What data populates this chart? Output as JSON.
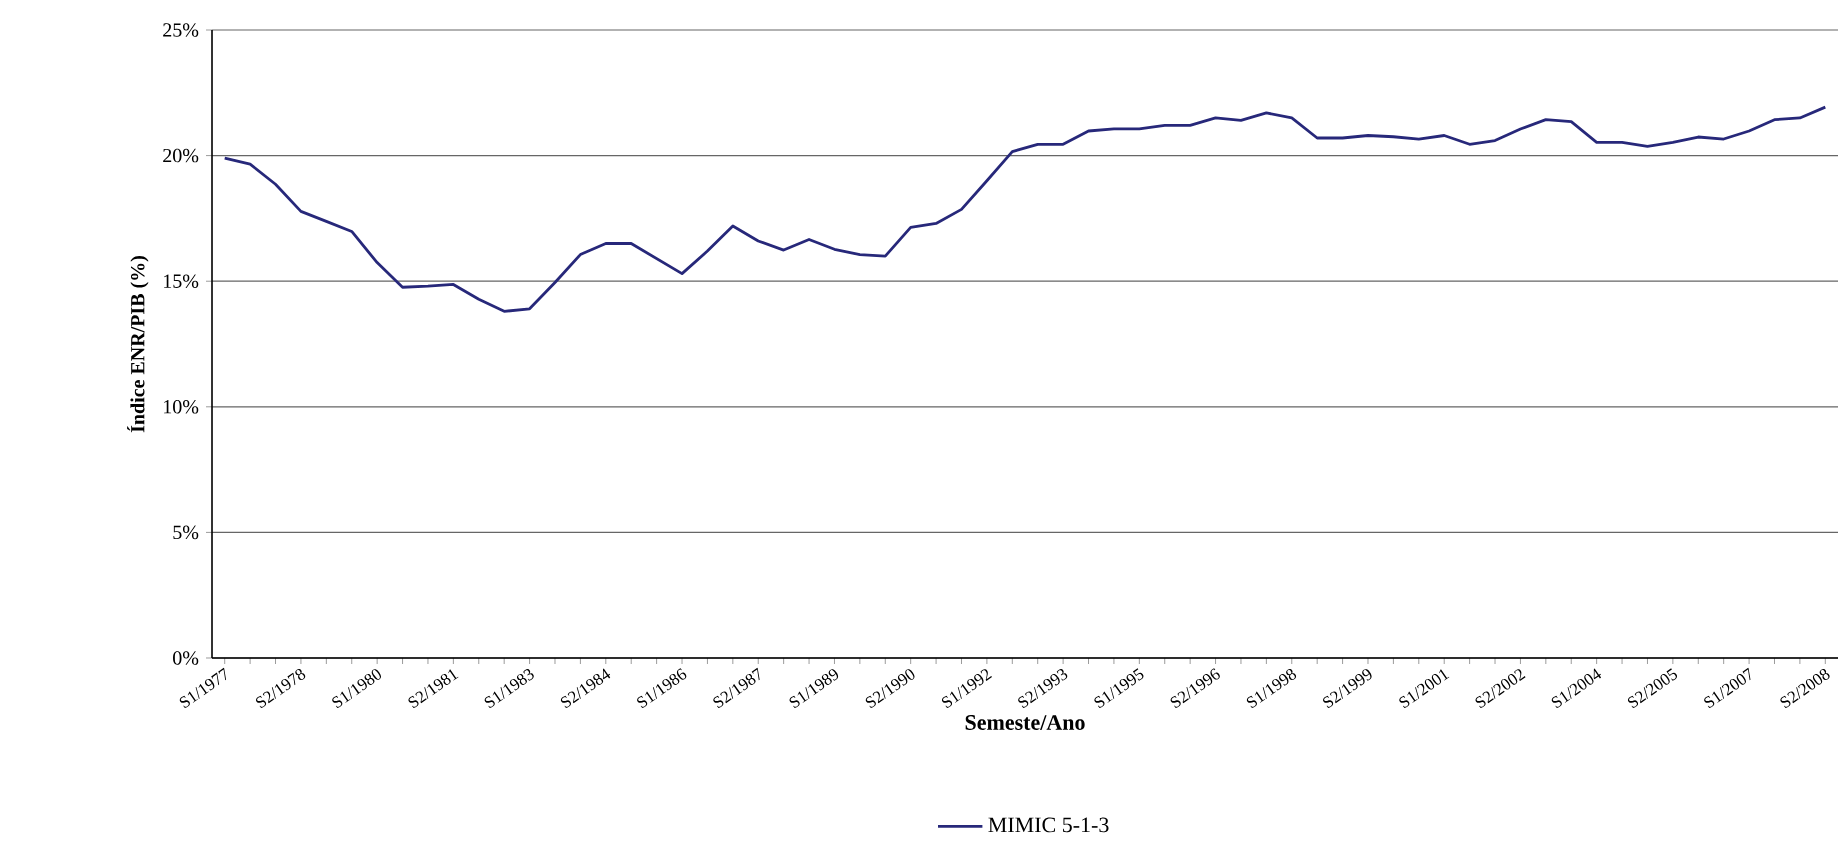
{
  "chart_data": {
    "type": "line",
    "xlabel": "Semeste/Ano",
    "ylabel": "Índice ENR/PIB (%)",
    "categories": [
      "S1/1977",
      null,
      null,
      "S2/1978",
      null,
      null,
      "S1/1980",
      null,
      null,
      "S2/1981",
      null,
      null,
      "S1/1983",
      null,
      null,
      "S2/1984",
      null,
      null,
      "S1/1986",
      null,
      null,
      "S2/1987",
      null,
      null,
      "S1/1989",
      null,
      null,
      "S2/1990",
      null,
      null,
      "S1/1992",
      null,
      null,
      "S2/1993",
      null,
      null,
      "S1/1995",
      null,
      null,
      "S2/1996",
      null,
      null,
      "S1/1998",
      null,
      null,
      "S2/1999",
      null,
      null,
      "S1/2001",
      null,
      null,
      "S2/2002",
      null,
      null,
      "S1/2004",
      null,
      null,
      "S2/2005",
      null,
      null,
      "S1/2007",
      null,
      null,
      "S2/2008"
    ],
    "series": [
      {
        "name": "MIMIC 5-1-3",
        "color": "#27287a",
        "values": [
          19.9,
          19.66,
          18.86,
          17.78,
          17.38,
          16.98,
          15.74,
          14.76,
          14.8,
          14.87,
          14.28,
          13.8,
          13.9,
          14.95,
          16.06,
          16.5,
          16.5,
          15.9,
          15.3,
          16.2,
          17.2,
          16.6,
          16.24,
          16.66,
          16.27,
          16.06,
          16.0,
          17.14,
          17.3,
          17.86,
          19.0,
          20.16,
          20.45,
          20.45,
          20.98,
          21.06,
          21.06,
          21.2,
          21.2,
          21.5,
          21.4,
          21.7,
          21.5,
          20.7,
          20.7,
          20.8,
          20.75,
          20.66,
          20.8,
          20.45,
          20.6,
          21.06,
          21.43,
          21.35,
          20.53,
          20.53,
          20.37,
          20.53,
          20.74,
          20.66,
          20.98,
          21.43,
          21.5,
          21.93
        ]
      }
    ],
    "ylim": [
      0,
      25
    ],
    "yticks": [
      {
        "value": 0,
        "label": "0%"
      },
      {
        "value": 5,
        "label": "5%"
      },
      {
        "value": 10,
        "label": "10%"
      },
      {
        "value": 15,
        "label": "15%"
      },
      {
        "value": 20,
        "label": "20%"
      },
      {
        "value": 25,
        "label": "25%"
      }
    ],
    "grid": "y",
    "legend": "bottom",
    "marker": "none",
    "line_style": "solid"
  }
}
